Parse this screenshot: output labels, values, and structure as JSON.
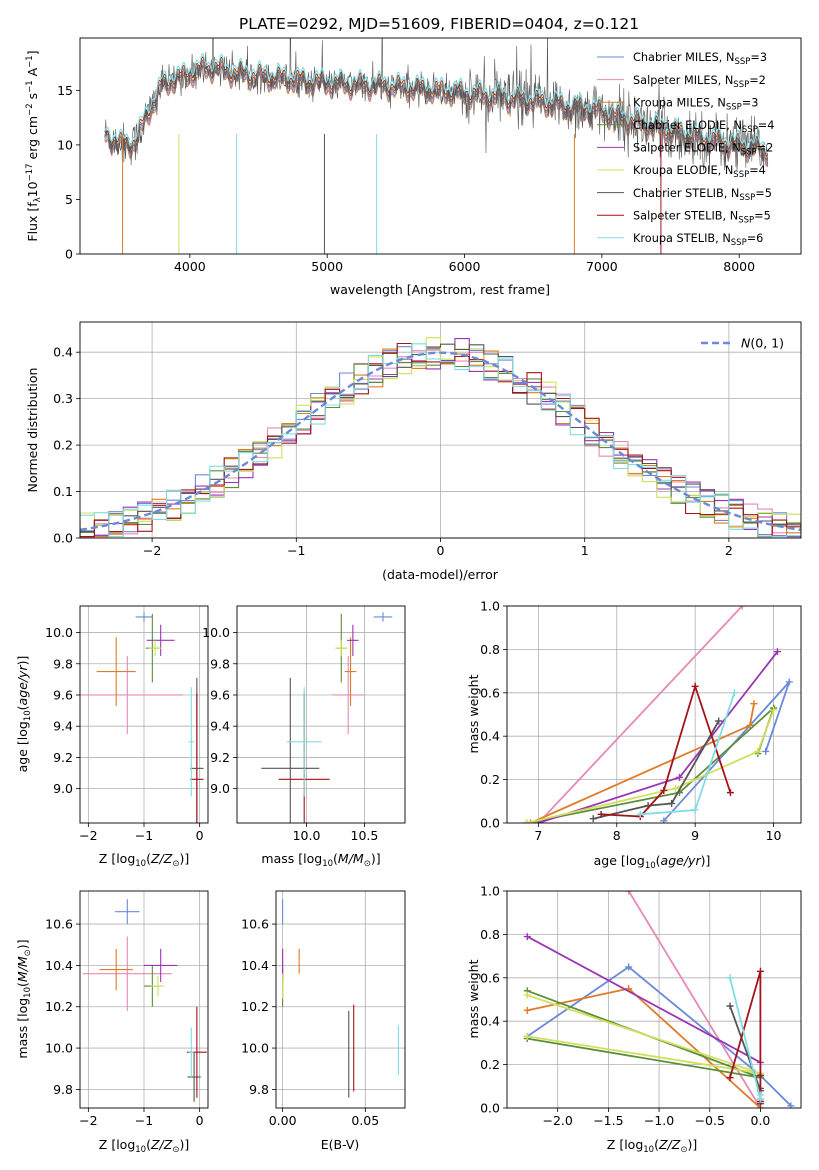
{
  "title": "PLATE=0292, MJD=51609, FIBERID=0404, z=0.121",
  "colors": {
    "chabrier_miles": "#6a8ad8",
    "salpeter_miles": "#e58ab8",
    "kroupa_miles": "#e07b27",
    "chabrier_elodie": "#5c8f3a",
    "salpeter_elodie": "#9b35b5",
    "kroupa_elodie": "#cfe05a",
    "chabrier_stelib": "#555555",
    "salpeter_stelib": "#a3131b",
    "kroupa_stelib": "#7fdde3"
  },
  "chart_data": [
    {
      "type": "line",
      "panel": "spectrum",
      "xlabel": "wavelength [Angstrom, rest frame]",
      "ylabel_parts": [
        "Flux [f",
        "λ",
        "10",
        "−17",
        " erg cm",
        "−2",
        " s",
        "−1",
        " A",
        "−1",
        "]"
      ],
      "xlim": [
        3200,
        8450
      ],
      "ylim": [
        0,
        19.8
      ],
      "xticks": [
        4000,
        5000,
        6000,
        7000,
        8000
      ],
      "yticks": [
        0,
        5,
        10,
        15
      ],
      "continuum": {
        "x": [
          3380,
          3500,
          3600,
          3700,
          3800,
          3900,
          4000,
          4100,
          4200,
          4300,
          4500,
          5000,
          5500,
          6000,
          6500,
          6800,
          7000,
          7200,
          7500,
          7800,
          8000,
          8200
        ],
        "y": [
          11.0,
          10.0,
          10.2,
          13.0,
          15.5,
          16.0,
          16.5,
          17.0,
          17.0,
          16.6,
          16.3,
          15.6,
          15.3,
          14.7,
          14.0,
          13.4,
          13.0,
          12.2,
          11.2,
          10.4,
          9.9,
          9.5
        ]
      },
      "legend": [
        {
          "key": "chabrier_miles",
          "pre": "Chabrier MILES, N",
          "sub": "SSP",
          "post": "=3"
        },
        {
          "key": "salpeter_miles",
          "pre": "Salpeter MILES, N",
          "sub": "SSP",
          "post": "=2"
        },
        {
          "key": "kroupa_miles",
          "pre": "Kroupa MILES, N",
          "sub": "SSP",
          "post": "=3"
        },
        {
          "key": "chabrier_elodie",
          "pre": "Chabrier ELODIE, N",
          "sub": "SSP",
          "post": "=4"
        },
        {
          "key": "salpeter_elodie",
          "pre": "Salpeter ELODIE, N",
          "sub": "SSP",
          "post": "=2"
        },
        {
          "key": "kroupa_elodie",
          "pre": "Kroupa ELODIE, N",
          "sub": "SSP",
          "post": "=4"
        },
        {
          "key": "chabrier_stelib",
          "pre": "Chabrier STELIB, N",
          "sub": "SSP",
          "post": "=5"
        },
        {
          "key": "salpeter_stelib",
          "pre": "Salpeter STELIB, N",
          "sub": "SSP",
          "post": "=5"
        },
        {
          "key": "kroupa_stelib",
          "pre": "Kroupa STELIB, N",
          "sub": "SSP",
          "post": "=6"
        }
      ],
      "legend_position": "upper right"
    },
    {
      "type": "histogram",
      "panel": "residuals",
      "xlabel": "(data-model)/error",
      "ylabel": "Normed distribution",
      "xlim": [
        -2.5,
        2.5
      ],
      "ylim": [
        0,
        0.465
      ],
      "xticks": [
        -2,
        -1,
        0,
        1,
        2
      ],
      "yticks": [
        0.0,
        0.1,
        0.2,
        0.3,
        0.4
      ],
      "bin_width": 0.1,
      "reference_curve": {
        "label": "N(0,1)",
        "sigma": 1,
        "color": "#6a8ad8",
        "legend_position": "upper right"
      }
    },
    {
      "type": "scatter",
      "panel": "age_vs_Z",
      "xlabel": "Z [log10(Z/Z⊙)]",
      "ylabel": "age [log10(age/yr)]",
      "xlim": [
        -2.15,
        0.15
      ],
      "ylim": [
        8.78,
        10.17
      ],
      "xticks": [
        -2,
        -1,
        0
      ],
      "yticks": [
        9.0,
        9.2,
        9.4,
        9.6,
        9.8,
        10.0
      ],
      "points": [
        {
          "key": "chabrier_miles",
          "x": -1.0,
          "y": 10.1,
          "xerr": 0.15,
          "yerr": 0.03
        },
        {
          "key": "salpeter_miles",
          "x": -1.3,
          "y": 9.6,
          "xerr": 1.0,
          "yerr": 0.25
        },
        {
          "key": "kroupa_miles",
          "x": -1.5,
          "y": 9.75,
          "xerr": 0.35,
          "yerr": 0.22
        },
        {
          "key": "chabrier_elodie",
          "x": -0.85,
          "y": 9.9,
          "xerr": 0.12,
          "yerr": 0.22
        },
        {
          "key": "salpeter_elodie",
          "x": -0.7,
          "y": 9.95,
          "xerr": 0.25,
          "yerr": 0.1
        },
        {
          "key": "kroupa_elodie",
          "x": -0.8,
          "y": 9.9,
          "xerr": 0.12,
          "yerr": 0.05
        },
        {
          "key": "chabrier_stelib",
          "x": -0.05,
          "y": 9.13,
          "xerr": 0.12,
          "yerr": 0.58
        },
        {
          "key": "salpeter_stelib",
          "x": -0.05,
          "y": 9.06,
          "xerr": 0.12,
          "yerr": 0.55
        },
        {
          "key": "kroupa_stelib",
          "x": -0.15,
          "y": 9.3,
          "xerr": 0.05,
          "yerr": 0.35
        }
      ]
    },
    {
      "type": "scatter",
      "panel": "age_vs_mass",
      "xlabel": "mass [log10(M/M⊙)]",
      "ylabel": "",
      "xlim": [
        9.4,
        10.85
      ],
      "ylim": [
        8.78,
        10.17
      ],
      "xticks": [
        10.0,
        10.5
      ],
      "yticks": [
        9.0,
        9.2,
        9.4,
        9.6,
        9.8,
        10.0
      ],
      "points": [
        {
          "key": "chabrier_miles",
          "x": 10.66,
          "y": 10.1,
          "xerr": 0.08,
          "yerr": 0.03
        },
        {
          "key": "salpeter_miles",
          "x": 10.36,
          "y": 9.6,
          "xerr": 0.14,
          "yerr": 0.25
        },
        {
          "key": "kroupa_miles",
          "x": 10.38,
          "y": 9.75,
          "xerr": 0.05,
          "yerr": 0.22
        },
        {
          "key": "chabrier_elodie",
          "x": 10.3,
          "y": 9.9,
          "xerr": 0.05,
          "yerr": 0.22
        },
        {
          "key": "salpeter_elodie",
          "x": 10.4,
          "y": 9.95,
          "xerr": 0.05,
          "yerr": 0.1
        },
        {
          "key": "kroupa_elodie",
          "x": 10.3,
          "y": 9.9,
          "xerr": 0.05,
          "yerr": 0.05
        },
        {
          "key": "chabrier_stelib",
          "x": 9.86,
          "y": 9.13,
          "xerr": 0.25,
          "yerr": 0.58
        },
        {
          "key": "salpeter_stelib",
          "x": 9.98,
          "y": 9.06,
          "xerr": 0.22,
          "yerr": 0.55
        },
        {
          "key": "kroupa_stelib",
          "x": 9.98,
          "y": 9.3,
          "xerr": 0.15,
          "yerr": 0.35
        }
      ]
    },
    {
      "type": "line",
      "panel": "weight_vs_age",
      "xlabel": "age [log10(age/yr)]",
      "ylabel": "mass weight",
      "xlim": [
        6.6,
        10.35
      ],
      "ylim": [
        0,
        1
      ],
      "xticks": [
        7,
        8,
        9,
        10
      ],
      "yticks": [
        0.0,
        0.2,
        0.4,
        0.6,
        0.8,
        1.0
      ],
      "series": [
        {
          "key": "chabrier_miles",
          "x": [
            8.6,
            10.2,
            9.9
          ],
          "y": [
            0.01,
            0.65,
            0.33
          ]
        },
        {
          "key": "salpeter_miles",
          "x": [
            7.0,
            9.6
          ],
          "y": [
            0.0,
            1.0
          ]
        },
        {
          "key": "kroupa_miles",
          "x": [
            6.9,
            9.7,
            9.75
          ],
          "y": [
            0.0,
            0.45,
            0.55
          ]
        },
        {
          "key": "chabrier_elodie",
          "x": [
            6.85,
            8.8,
            10.0,
            9.8
          ],
          "y": [
            0.0,
            0.14,
            0.53,
            0.32
          ]
        },
        {
          "key": "salpeter_elodie",
          "x": [
            7.0,
            8.8,
            10.05
          ],
          "y": [
            0.0,
            0.21,
            0.79
          ]
        },
        {
          "key": "kroupa_elodie",
          "x": [
            6.85,
            8.75,
            9.8,
            10.0
          ],
          "y": [
            0.0,
            0.16,
            0.33,
            0.52
          ]
        },
        {
          "key": "chabrier_stelib",
          "x": [
            7.7,
            8.4,
            8.7,
            9.3
          ],
          "y": [
            0.02,
            0.08,
            0.09,
            0.47
          ]
        },
        {
          "key": "salpeter_stelib",
          "x": [
            7.8,
            8.3,
            8.6,
            9.0,
            9.45
          ],
          "y": [
            0.04,
            0.03,
            0.15,
            0.63,
            0.14
          ]
        },
        {
          "key": "kroupa_stelib",
          "x": [
            8.3,
            9.0,
            9.5
          ],
          "y": [
            0.04,
            0.06,
            0.6
          ]
        }
      ]
    },
    {
      "type": "scatter",
      "panel": "mass_vs_Z",
      "xlabel": "Z [log10(Z/Z⊙)]",
      "ylabel": "mass [log10(M/M⊙)]",
      "xlim": [
        -2.15,
        0.15
      ],
      "ylim": [
        9.71,
        10.76
      ],
      "xticks": [
        -2,
        -1,
        0
      ],
      "yticks": [
        9.8,
        10.0,
        10.2,
        10.4,
        10.6
      ],
      "points": [
        {
          "key": "chabrier_miles",
          "x": -1.3,
          "y": 10.66,
          "xerr": 0.22,
          "yerr": 0.06
        },
        {
          "key": "salpeter_miles",
          "x": -1.3,
          "y": 10.36,
          "xerr": 0.8,
          "yerr": 0.18
        },
        {
          "key": "kroupa_miles",
          "x": -1.5,
          "y": 10.38,
          "xerr": 0.3,
          "yerr": 0.1
        },
        {
          "key": "chabrier_elodie",
          "x": -0.85,
          "y": 10.3,
          "xerr": 0.15,
          "yerr": 0.1
        },
        {
          "key": "salpeter_elodie",
          "x": -0.7,
          "y": 10.4,
          "xerr": 0.3,
          "yerr": 0.08
        },
        {
          "key": "kroupa_elodie",
          "x": -0.75,
          "y": 10.3,
          "xerr": 0.12,
          "yerr": 0.05
        },
        {
          "key": "chabrier_stelib",
          "x": -0.1,
          "y": 9.86,
          "xerr": 0.12,
          "yerr": 0.12
        },
        {
          "key": "salpeter_stelib",
          "x": -0.05,
          "y": 9.98,
          "xerr": 0.18,
          "yerr": 0.22
        },
        {
          "key": "kroupa_stelib",
          "x": -0.15,
          "y": 9.98,
          "xerr": 0.05,
          "yerr": 0.12
        }
      ]
    },
    {
      "type": "scatter",
      "panel": "mass_vs_ebv",
      "xlabel": "E(B-V)",
      "ylabel": "",
      "xlim": [
        -0.004,
        0.074
      ],
      "ylim": [
        9.71,
        10.76
      ],
      "xticks": [
        0.0,
        0.05
      ],
      "yticks": [
        9.8,
        10.0,
        10.2,
        10.4,
        10.6
      ],
      "points": [
        {
          "key": "chabrier_miles",
          "x": 0.0,
          "y": 10.66,
          "yerr": 0.06
        },
        {
          "key": "salpeter_miles",
          "x": 0.0,
          "y": 10.4,
          "yerr": 0.08
        },
        {
          "key": "kroupa_miles",
          "x": 0.01,
          "y": 10.42,
          "yerr": 0.06
        },
        {
          "key": "chabrier_elodie",
          "x": 0.0,
          "y": 10.3,
          "yerr": 0.1
        },
        {
          "key": "salpeter_elodie",
          "x": 0.0,
          "y": 10.4,
          "yerr": 0.08
        },
        {
          "key": "kroupa_elodie",
          "x": 0.0,
          "y": 10.3,
          "yerr": 0.06
        },
        {
          "key": "chabrier_stelib",
          "x": 0.04,
          "y": 9.97,
          "yerr": 0.21
        },
        {
          "key": "salpeter_stelib",
          "x": 0.043,
          "y": 10.0,
          "yerr": 0.21
        },
        {
          "key": "kroupa_stelib",
          "x": 0.07,
          "y": 9.99,
          "yerr": 0.12
        }
      ]
    },
    {
      "type": "line",
      "panel": "weight_vs_Z",
      "xlabel": "Z [log10(Z/Z⊙)]",
      "ylabel": "mass weight",
      "xlim": [
        -2.5,
        0.4
      ],
      "ylim": [
        0,
        1
      ],
      "xticks": [
        -2.0,
        -1.5,
        -1.0,
        -0.5,
        0.0
      ],
      "yticks": [
        0.0,
        0.2,
        0.4,
        0.6,
        0.8,
        1.0
      ],
      "series": [
        {
          "key": "chabrier_miles",
          "x": [
            -2.3,
            -1.3,
            0.0,
            0.3
          ],
          "y": [
            0.33,
            0.65,
            0.15,
            0.01
          ]
        },
        {
          "key": "salpeter_miles",
          "x": [
            -1.3,
            0.0
          ],
          "y": [
            1.0,
            0.0
          ]
        },
        {
          "key": "kroupa_miles",
          "x": [
            -2.3,
            -1.3,
            0.0
          ],
          "y": [
            0.45,
            0.55,
            0.0
          ]
        },
        {
          "key": "chabrier_elodie",
          "x": [
            -2.3,
            0.0,
            -2.3
          ],
          "y": [
            0.54,
            0.14,
            0.32
          ]
        },
        {
          "key": "salpeter_elodie",
          "x": [
            -2.3,
            0.0
          ],
          "y": [
            0.79,
            0.21
          ]
        },
        {
          "key": "kroupa_elodie",
          "x": [
            -2.3,
            0.0,
            -2.3
          ],
          "y": [
            0.52,
            0.16,
            0.33
          ]
        },
        {
          "key": "chabrier_stelib",
          "x": [
            -0.3,
            0.0,
            0.0,
            0.0
          ],
          "y": [
            0.47,
            0.08,
            0.02,
            0.09
          ]
        },
        {
          "key": "salpeter_stelib",
          "x": [
            -0.3,
            0.0,
            0.0,
            0.0,
            0.0
          ],
          "y": [
            0.14,
            0.63,
            0.03,
            0.15,
            0.04
          ]
        },
        {
          "key": "kroupa_stelib",
          "x": [
            -0.3,
            0.0,
            0.0
          ],
          "y": [
            0.6,
            0.04,
            0.06
          ]
        }
      ]
    }
  ]
}
